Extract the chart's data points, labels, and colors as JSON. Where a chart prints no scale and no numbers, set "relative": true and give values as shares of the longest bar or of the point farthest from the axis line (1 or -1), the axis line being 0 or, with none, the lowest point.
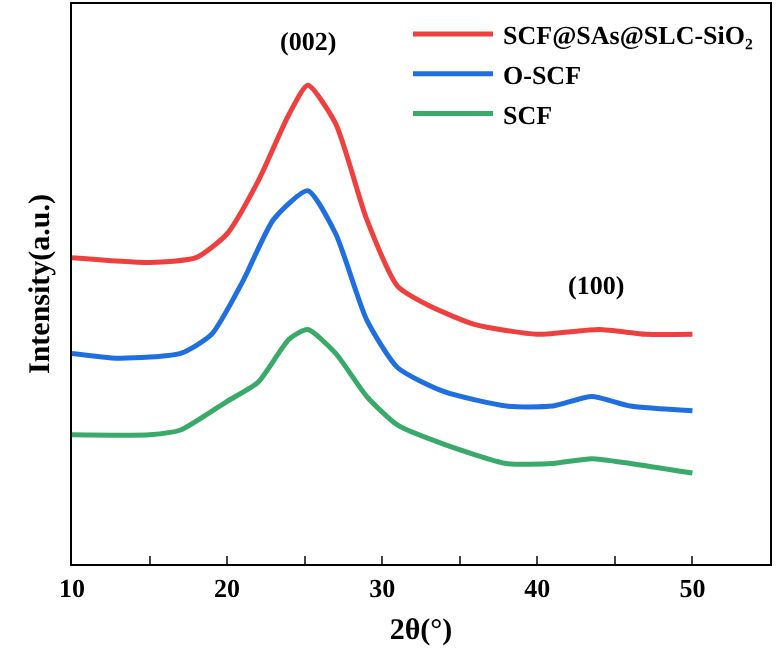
{
  "chart_data": {
    "type": "line",
    "relative": true,
    "xlabel": "2θ(°)",
    "ylabel": "Intensity(a.u.)",
    "xlim": [
      10,
      55
    ],
    "xticks": [
      10,
      {
        "value": 15,
        "label": null
      },
      20,
      {
        "value": 25,
        "label": null
      },
      30,
      {
        "value": 35,
        "label": null
      },
      40,
      {
        "value": 45,
        "label": null
      },
      50,
      {
        "value": 55,
        "label": null
      }
    ],
    "legend": "top right",
    "marker": "none",
    "line_style": "solid",
    "annotations": [
      {
        "text": "(002)",
        "x": 25.2,
        "y": 1.0
      },
      {
        "text": "(100)",
        "x": 43.8,
        "y": 0.49
      }
    ],
    "x": [
      10,
      15,
      18,
      20,
      22,
      24,
      25.2,
      27,
      29,
      31,
      33,
      36,
      40,
      44,
      47,
      50
    ],
    "series": [
      {
        "name": "SCF@SAs@SLC-SiO₂",
        "color": "#ef4040",
        "values": [
          0.64,
          0.63,
          0.64,
          0.69,
          0.8,
          0.94,
          1.0,
          0.92,
          0.72,
          0.58,
          0.54,
          0.5,
          0.48,
          0.49,
          0.48,
          0.48
        ]
      },
      {
        "name": "O-SCF",
        "color": "#1f6fe0",
        "x": [
          10,
          13,
          17,
          19,
          21,
          23,
          25.2,
          27,
          29,
          31,
          34,
          38,
          41,
          43.5,
          46,
          50
        ],
        "values": [
          0.44,
          0.43,
          0.44,
          0.48,
          0.59,
          0.72,
          0.78,
          0.69,
          0.51,
          0.41,
          0.36,
          0.33,
          0.33,
          0.35,
          0.33,
          0.32
        ]
      },
      {
        "name": "SCF",
        "color": "#3aaa6a",
        "x": [
          10,
          15,
          17,
          20,
          22,
          24,
          25.2,
          27,
          29,
          31,
          34,
          38,
          41,
          43.5,
          46,
          50
        ],
        "values": [
          0.27,
          0.27,
          0.28,
          0.34,
          0.38,
          0.47,
          0.49,
          0.44,
          0.35,
          0.29,
          0.25,
          0.21,
          0.21,
          0.22,
          0.21,
          0.19
        ]
      }
    ]
  }
}
